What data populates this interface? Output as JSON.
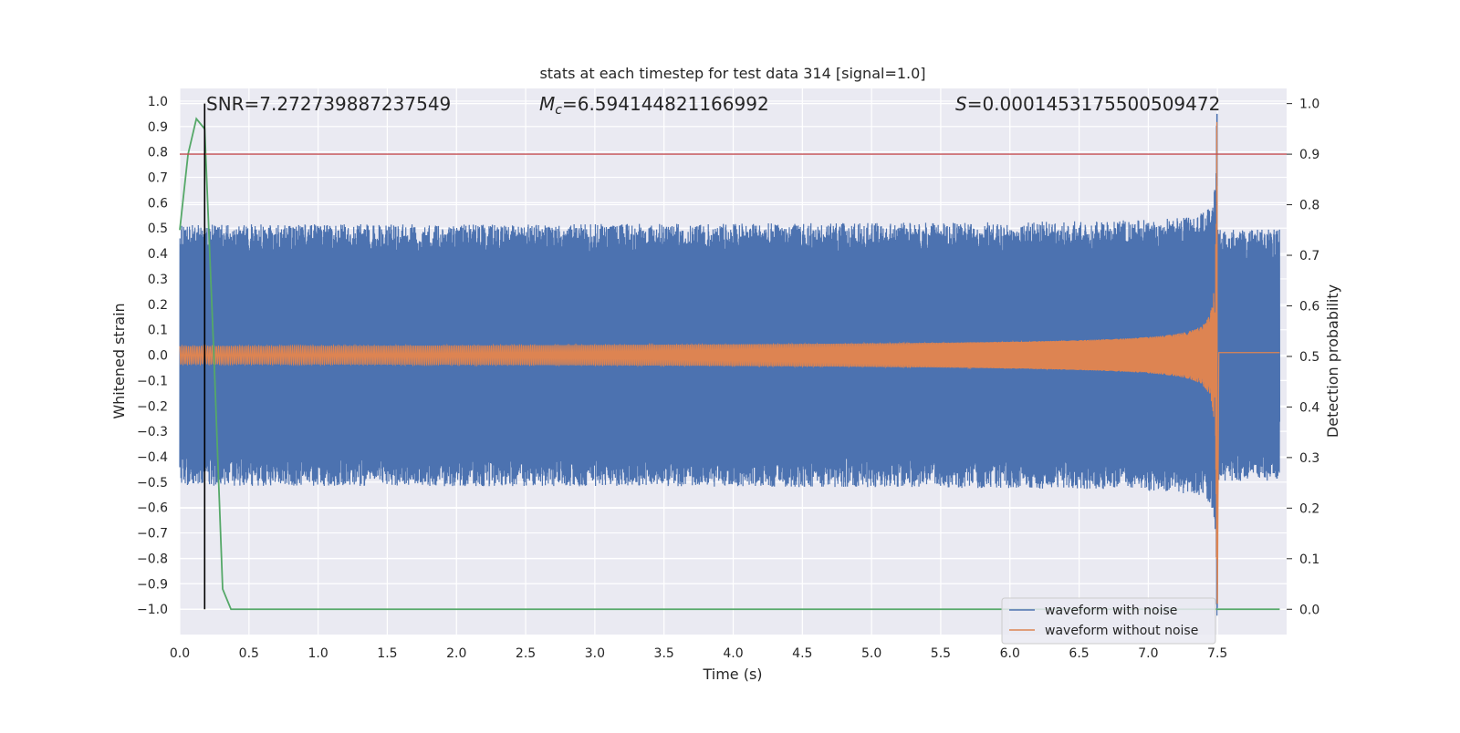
{
  "chart_data": {
    "type": "line",
    "title": "stats at each timestep for test data 314 [signal=1.0]",
    "xlabel": "Time (s)",
    "ylabel_left": "Whitened strain",
    "ylabel_right": "Detection probability",
    "xlim": [
      0.0,
      8.0
    ],
    "ylim_left": [
      -1.1,
      1.05
    ],
    "ylim_right": [
      -0.05,
      1.03
    ],
    "x_ticks": [
      "0.0",
      "0.5",
      "1.0",
      "1.5",
      "2.0",
      "2.5",
      "3.0",
      "3.5",
      "4.0",
      "4.5",
      "5.0",
      "5.5",
      "6.0",
      "6.5",
      "7.0",
      "7.5"
    ],
    "y_left_ticks": [
      "1.0",
      "0.9",
      "0.8",
      "0.7",
      "0.6",
      "0.5",
      "0.4",
      "0.3",
      "0.2",
      "0.1",
      "0.0",
      "−0.1",
      "−0.2",
      "−0.3",
      "−0.4",
      "−0.5",
      "−0.6",
      "−0.7",
      "−0.8",
      "−0.9",
      "−1.0"
    ],
    "y_right_ticks": [
      "1.0",
      "0.9",
      "0.8",
      "0.7",
      "0.6",
      "0.5",
      "0.4",
      "0.3",
      "0.2",
      "0.1",
      "0.0"
    ],
    "grid": true,
    "legend_position": "lower-right",
    "annotations": {
      "snr": "SNR=7.272739887237549",
      "mc_symbol": "M",
      "mc_subscript": "c",
      "mc_value": "=6.594144821166992",
      "s_symbol": "S",
      "s_value": "=0.0001453175500509472"
    },
    "series": [
      {
        "name": "waveform with noise",
        "axis": "left",
        "color": "#4c72b0",
        "noise_amplitude": 0.45,
        "merger_time": 7.5
      },
      {
        "name": "waveform without noise",
        "axis": "left",
        "color": "#dd8452",
        "amplitude_start": 0.035,
        "amplitude_peak": 1.0,
        "merger_time": 7.5
      },
      {
        "name": "detection probability",
        "axis": "right",
        "color": "#55a868",
        "x": [
          0.0,
          0.06,
          0.12,
          0.18,
          0.25,
          0.31,
          0.37,
          7.95
        ],
        "y": [
          0.75,
          0.9,
          0.97,
          0.95,
          0.48,
          0.04,
          0.0,
          0.0
        ]
      }
    ],
    "threshold": {
      "value": 0.9,
      "axis": "right",
      "color": "#c44e52"
    },
    "marker_line": {
      "x": 0.18,
      "color": "#000000"
    }
  }
}
